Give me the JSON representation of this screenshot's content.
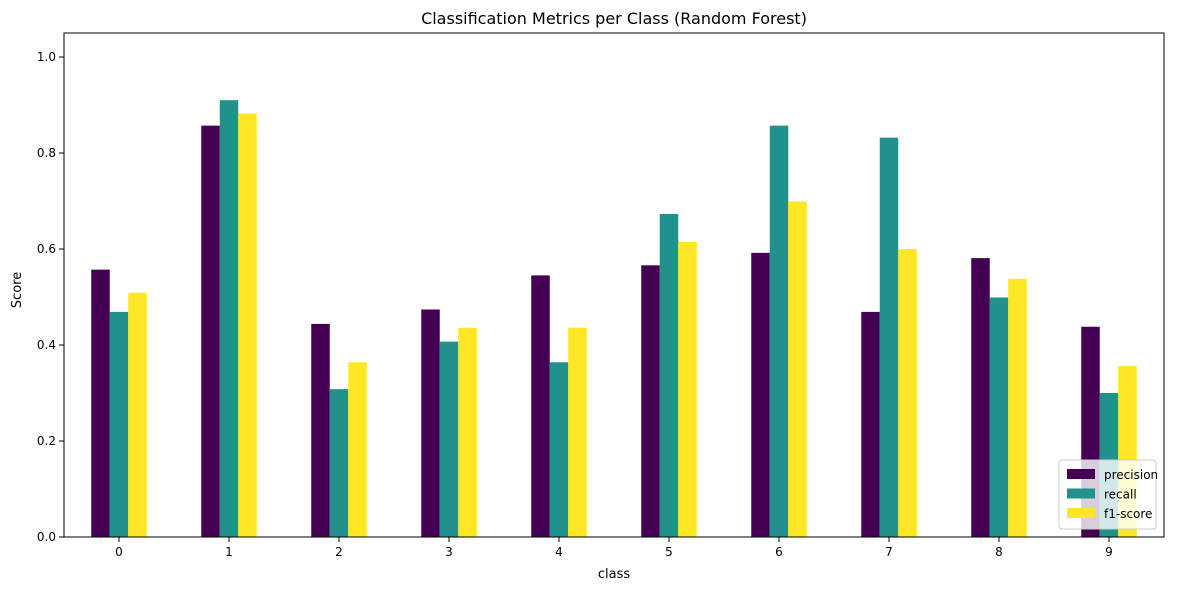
{
  "chart_data": {
    "type": "bar",
    "title": "Classification Metrics per Class (Random Forest)",
    "xlabel": "class",
    "ylabel": "Score",
    "categories": [
      "0",
      "1",
      "2",
      "3",
      "4",
      "5",
      "6",
      "7",
      "8",
      "9"
    ],
    "ylim": [
      0,
      1.05
    ],
    "yticks": [
      "0.0",
      "0.2",
      "0.4",
      "0.6",
      "0.8",
      "1.0"
    ],
    "grid": false,
    "legend_position": "lower-right",
    "series": [
      {
        "name": "precision",
        "color": "#440154",
        "values": [
          0.557,
          0.857,
          0.444,
          0.474,
          0.545,
          0.566,
          0.592,
          0.469,
          0.581,
          0.438
        ]
      },
      {
        "name": "recall",
        "color": "#21918c",
        "values": [
          0.469,
          0.91,
          0.308,
          0.407,
          0.364,
          0.673,
          0.857,
          0.832,
          0.499,
          0.3
        ]
      },
      {
        "name": "f1-score",
        "color": "#fde725",
        "values": [
          0.509,
          0.882,
          0.364,
          0.436,
          0.436,
          0.615,
          0.699,
          0.6,
          0.538,
          0.356
        ]
      }
    ]
  }
}
